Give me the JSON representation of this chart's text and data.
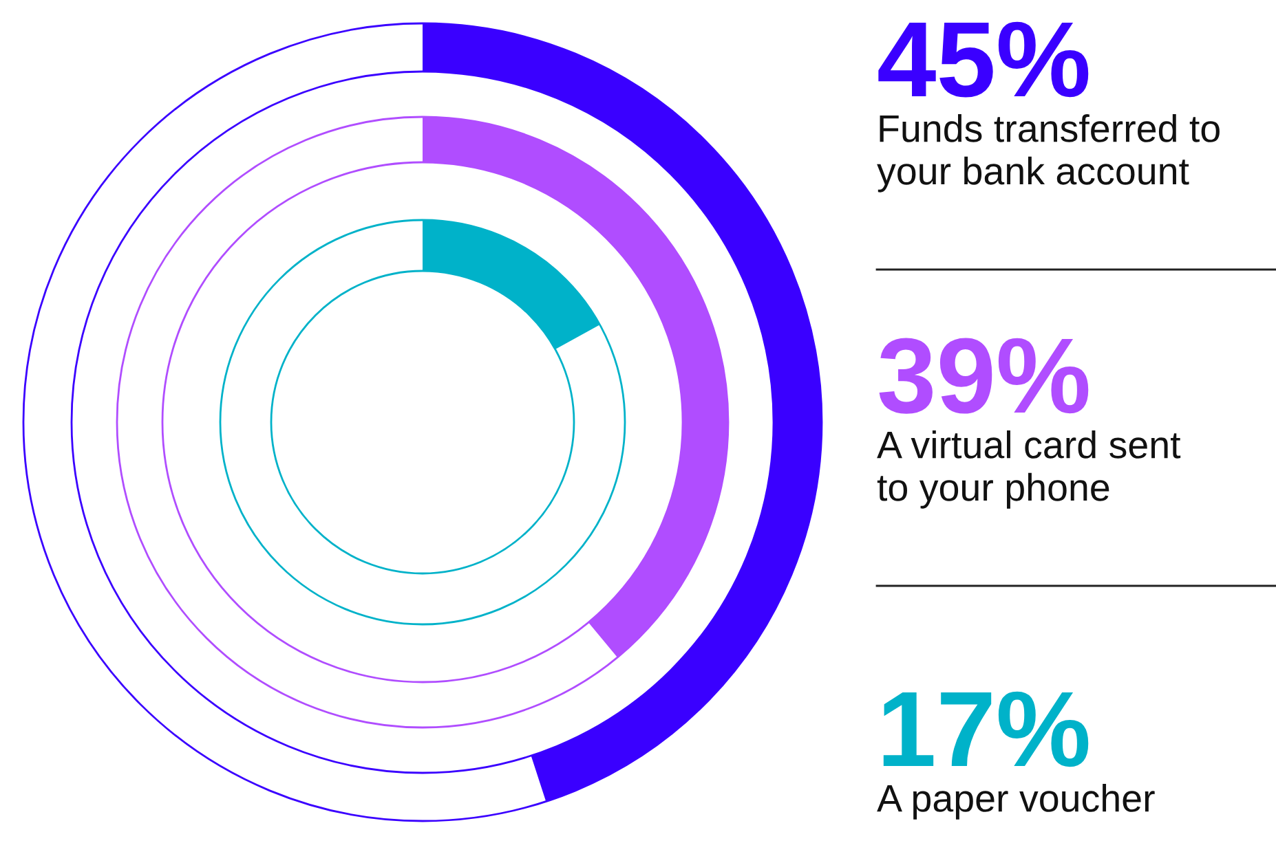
{
  "chart_data": {
    "type": "other",
    "categories": [
      "Funds transferred to\nyour bank account",
      "A virtual card sent\nto your phone",
      "A paper voucher"
    ],
    "values": [
      45,
      39,
      17
    ],
    "colors": [
      "#3a00ff",
      "#b04dff",
      "#00b2c9"
    ],
    "data_labels": true,
    "value_labels": [
      "45%",
      "39%",
      "17%"
    ]
  }
}
